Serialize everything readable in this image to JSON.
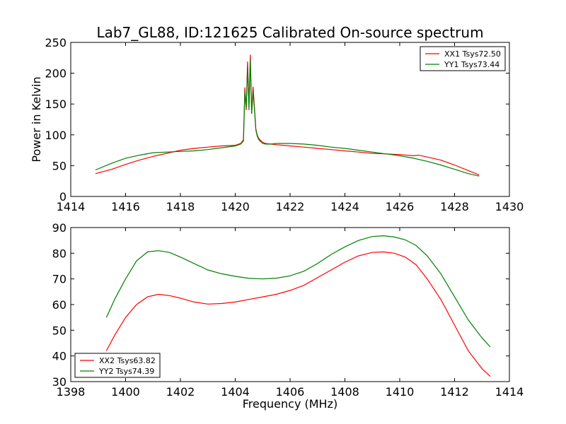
{
  "chart_data": [
    {
      "type": "line",
      "title": "Lab7_GL88, ID:121625 Calibrated On-source spectrum",
      "xlabel": "",
      "ylabel": "Power in Kelvin",
      "xlim": [
        1414,
        1430
      ],
      "ylim": [
        0,
        250
      ],
      "xticks": [
        "1414",
        "1416",
        "1418",
        "1420",
        "1422",
        "1424",
        "1426",
        "1428",
        "1430"
      ],
      "yticks": [
        "0",
        "50",
        "100",
        "150",
        "200",
        "250"
      ],
      "grid": false,
      "legend_position": "top-right",
      "series": [
        {
          "name": "XX1 Tsys72.50",
          "color": "#ff0000",
          "x": [
            1414.9,
            1415.5,
            1416.0,
            1416.5,
            1417.0,
            1417.5,
            1418.0,
            1418.5,
            1419.0,
            1419.5,
            1420.0,
            1420.2,
            1420.3,
            1420.35,
            1420.4,
            1420.45,
            1420.5,
            1420.55,
            1420.6,
            1420.65,
            1420.7,
            1420.75,
            1420.8,
            1420.85,
            1420.9,
            1421.0,
            1421.1,
            1421.3,
            1421.5,
            1422.0,
            1422.5,
            1423.0,
            1423.5,
            1424.0,
            1424.5,
            1425.0,
            1425.5,
            1426.0,
            1426.5,
            1426.7,
            1427.0,
            1427.5,
            1428.0,
            1428.5,
            1428.9
          ],
          "y": [
            37,
            44,
            52,
            59,
            65,
            70,
            75,
            78,
            80,
            82,
            83,
            86,
            92,
            177,
            140,
            219,
            150,
            230,
            136,
            178,
            145,
            110,
            100,
            95,
            92,
            88,
            86,
            85,
            84,
            82,
            80,
            78,
            76,
            74,
            72,
            70,
            69,
            68,
            66,
            67,
            64,
            59,
            51,
            42,
            35
          ]
        },
        {
          "name": "YY1 Tsys73.44",
          "color": "#008000",
          "x": [
            1414.9,
            1415.5,
            1416.0,
            1416.5,
            1417.0,
            1417.5,
            1418.0,
            1418.5,
            1419.0,
            1419.5,
            1420.0,
            1420.2,
            1420.3,
            1420.35,
            1420.4,
            1420.45,
            1420.5,
            1420.55,
            1420.6,
            1420.65,
            1420.7,
            1420.75,
            1420.8,
            1420.85,
            1420.9,
            1421.0,
            1421.1,
            1421.3,
            1421.5,
            1422.0,
            1422.5,
            1423.0,
            1423.5,
            1424.0,
            1424.5,
            1425.0,
            1425.5,
            1426.0,
            1426.5,
            1427.0,
            1427.5,
            1428.0,
            1428.5,
            1428.9
          ],
          "y": [
            43,
            54,
            62,
            67,
            71,
            72,
            73,
            74,
            76,
            79,
            82,
            85,
            90,
            170,
            145,
            210,
            140,
            222,
            134,
            170,
            142,
            108,
            98,
            93,
            90,
            86,
            85,
            85,
            86,
            86,
            85,
            83,
            80,
            78,
            75,
            72,
            69,
            66,
            62,
            57,
            51,
            44,
            37,
            33
          ]
        }
      ]
    },
    {
      "type": "line",
      "title": "",
      "xlabel": "Frequency (MHz)",
      "ylabel": "",
      "xlim": [
        1398,
        1414
      ],
      "ylim": [
        30,
        90
      ],
      "xticks": [
        "1398",
        "1400",
        "1402",
        "1404",
        "1406",
        "1408",
        "1410",
        "1412",
        "1414"
      ],
      "yticks": [
        "30",
        "40",
        "50",
        "60",
        "70",
        "80",
        "90"
      ],
      "grid": false,
      "legend_position": "bottom-left",
      "series": [
        {
          "name": "XX2 Tsys63.82",
          "color": "#ff0000",
          "x": [
            1399.3,
            1399.6,
            1400.0,
            1400.4,
            1400.8,
            1401.2,
            1401.6,
            1402.0,
            1402.5,
            1403.0,
            1403.5,
            1404.0,
            1404.5,
            1405.0,
            1405.5,
            1406.0,
            1406.5,
            1407.0,
            1407.5,
            1408.0,
            1408.5,
            1409.0,
            1409.4,
            1409.8,
            1410.2,
            1410.6,
            1411.0,
            1411.5,
            1412.0,
            1412.5,
            1413.0,
            1413.3
          ],
          "y": [
            42,
            48,
            55,
            60,
            63,
            64,
            63.5,
            62.5,
            61,
            60.2,
            60.4,
            61,
            62,
            63,
            64,
            65.5,
            67.5,
            70.5,
            73.5,
            76.5,
            79,
            80.3,
            80.5,
            80,
            78.5,
            75.5,
            70,
            62,
            52,
            42,
            35,
            32
          ]
        },
        {
          "name": "YY2 Tsys74.39",
          "color": "#008000",
          "x": [
            1399.3,
            1399.6,
            1400.0,
            1400.4,
            1400.8,
            1401.2,
            1401.6,
            1402.0,
            1402.5,
            1403.0,
            1403.5,
            1404.0,
            1404.5,
            1405.0,
            1405.5,
            1406.0,
            1406.5,
            1407.0,
            1407.5,
            1408.0,
            1408.5,
            1409.0,
            1409.4,
            1409.8,
            1410.2,
            1410.6,
            1411.0,
            1411.5,
            1412.0,
            1412.5,
            1413.0,
            1413.3
          ],
          "y": [
            55,
            62,
            70,
            77,
            80.5,
            81,
            80.3,
            78.5,
            76,
            73.5,
            72,
            71,
            70.2,
            70,
            70.3,
            71.2,
            73,
            76,
            79.5,
            82.5,
            85,
            86.5,
            86.8,
            86.3,
            85.2,
            83,
            79,
            72,
            63,
            54,
            47,
            43.5
          ]
        }
      ]
    }
  ]
}
